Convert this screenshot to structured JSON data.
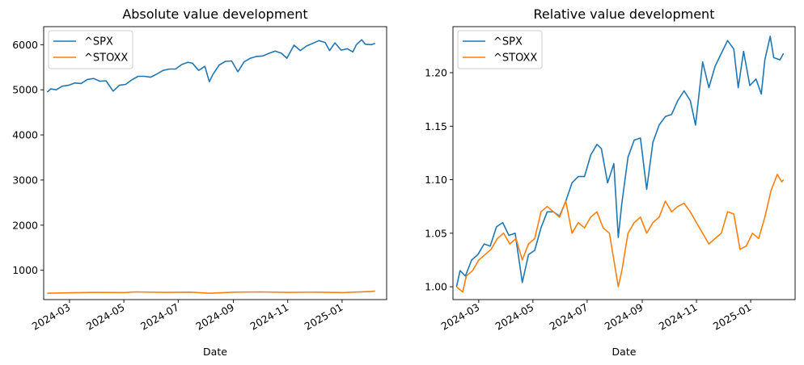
{
  "chart_data": [
    {
      "type": "line",
      "title": "Absolute value development",
      "xlabel": "Date",
      "ylabel": "",
      "x_range": [
        "2024-02-01",
        "2025-02-20"
      ],
      "ylim": [
        350,
        6400
      ],
      "x_ticks": [
        "2024-03",
        "2024-05",
        "2024-07",
        "2024-09",
        "2024-11",
        "2025-01"
      ],
      "y_ticks": [
        1000,
        2000,
        3000,
        4000,
        5000,
        6000
      ],
      "legend": "top-left",
      "series": [
        {
          "name": "^SPX",
          "color": "#1f77b4",
          "points": [
            [
              "2024-02-05",
              4950
            ],
            [
              "2024-02-09",
              5020
            ],
            [
              "2024-02-15",
              5000
            ],
            [
              "2024-02-22",
              5080
            ],
            [
              "2024-02-29",
              5100
            ],
            [
              "2024-03-07",
              5150
            ],
            [
              "2024-03-14",
              5140
            ],
            [
              "2024-03-21",
              5230
            ],
            [
              "2024-03-28",
              5250
            ],
            [
              "2024-04-04",
              5190
            ],
            [
              "2024-04-11",
              5200
            ],
            [
              "2024-04-19",
              4970
            ],
            [
              "2024-04-26",
              5100
            ],
            [
              "2024-05-03",
              5120
            ],
            [
              "2024-05-10",
              5220
            ],
            [
              "2024-05-17",
              5300
            ],
            [
              "2024-05-24",
              5300
            ],
            [
              "2024-05-31",
              5280
            ],
            [
              "2024-06-07",
              5350
            ],
            [
              "2024-06-14",
              5430
            ],
            [
              "2024-06-21",
              5460
            ],
            [
              "2024-06-28",
              5460
            ],
            [
              "2024-07-05",
              5560
            ],
            [
              "2024-07-12",
              5610
            ],
            [
              "2024-07-17",
              5590
            ],
            [
              "2024-07-24",
              5430
            ],
            [
              "2024-07-31",
              5520
            ],
            [
              "2024-08-05",
              5180
            ],
            [
              "2024-08-09",
              5340
            ],
            [
              "2024-08-16",
              5550
            ],
            [
              "2024-08-23",
              5630
            ],
            [
              "2024-08-30",
              5640
            ],
            [
              "2024-09-06",
              5400
            ],
            [
              "2024-09-13",
              5620
            ],
            [
              "2024-09-20",
              5700
            ],
            [
              "2024-09-27",
              5740
            ],
            [
              "2024-10-04",
              5750
            ],
            [
              "2024-10-11",
              5810
            ],
            [
              "2024-10-18",
              5860
            ],
            [
              "2024-10-25",
              5810
            ],
            [
              "2024-10-31",
              5700
            ],
            [
              "2024-11-08",
              5990
            ],
            [
              "2024-11-15",
              5870
            ],
            [
              "2024-11-22",
              5970
            ],
            [
              "2024-11-29",
              6030
            ],
            [
              "2024-12-06",
              6090
            ],
            [
              "2024-12-13",
              6050
            ],
            [
              "2024-12-18",
              5870
            ],
            [
              "2024-12-24",
              6040
            ],
            [
              "2024-12-31",
              5880
            ],
            [
              "2025-01-07",
              5910
            ],
            [
              "2025-01-13",
              5840
            ],
            [
              "2025-01-17",
              6000
            ],
            [
              "2025-01-23",
              6110
            ],
            [
              "2025-01-27",
              6010
            ],
            [
              "2025-02-03",
              6000
            ],
            [
              "2025-02-07",
              6030
            ]
          ]
        },
        {
          "name": "^STOXX",
          "color": "#ff7f0e",
          "points": [
            [
              "2024-02-05",
              490
            ],
            [
              "2024-03-01",
              500
            ],
            [
              "2024-04-01",
              510
            ],
            [
              "2024-05-01",
              505
            ],
            [
              "2024-05-15",
              520
            ],
            [
              "2024-06-14",
              510
            ],
            [
              "2024-07-15",
              515
            ],
            [
              "2024-08-05",
              490
            ],
            [
              "2024-09-02",
              515
            ],
            [
              "2024-10-01",
              520
            ],
            [
              "2024-11-01",
              510
            ],
            [
              "2024-12-02",
              515
            ],
            [
              "2025-01-02",
              505
            ],
            [
              "2025-02-03",
              530
            ],
            [
              "2025-02-07",
              540
            ]
          ]
        }
      ]
    },
    {
      "type": "line",
      "title": "Relative value development",
      "xlabel": "Date",
      "ylabel": "",
      "x_range": [
        "2024-02-01",
        "2025-02-20"
      ],
      "ylim": [
        0.988,
        1.243
      ],
      "x_ticks": [
        "2024-03",
        "2024-05",
        "2024-07",
        "2024-09",
        "2024-11",
        "2025-01"
      ],
      "y_ticks": [
        "1.00",
        "1.05",
        "1.10",
        "1.15",
        "1.20"
      ],
      "legend": "top-left",
      "series": [
        {
          "name": "^SPX",
          "color": "#1f77b4",
          "points": [
            [
              "2024-02-05",
              1.0
            ],
            [
              "2024-02-09",
              1.015
            ],
            [
              "2024-02-15",
              1.01
            ],
            [
              "2024-02-22",
              1.025
            ],
            [
              "2024-02-29",
              1.03
            ],
            [
              "2024-03-07",
              1.04
            ],
            [
              "2024-03-14",
              1.038
            ],
            [
              "2024-03-21",
              1.056
            ],
            [
              "2024-03-28",
              1.06
            ],
            [
              "2024-04-04",
              1.048
            ],
            [
              "2024-04-11",
              1.05
            ],
            [
              "2024-04-19",
              1.004
            ],
            [
              "2024-04-26",
              1.03
            ],
            [
              "2024-05-03",
              1.034
            ],
            [
              "2024-05-10",
              1.055
            ],
            [
              "2024-05-17",
              1.07
            ],
            [
              "2024-05-24",
              1.07
            ],
            [
              "2024-05-31",
              1.066
            ],
            [
              "2024-06-07",
              1.08
            ],
            [
              "2024-06-14",
              1.097
            ],
            [
              "2024-06-21",
              1.103
            ],
            [
              "2024-06-28",
              1.103
            ],
            [
              "2024-07-05",
              1.123
            ],
            [
              "2024-07-12",
              1.133
            ],
            [
              "2024-07-17",
              1.129
            ],
            [
              "2024-07-24",
              1.097
            ],
            [
              "2024-07-31",
              1.115
            ],
            [
              "2024-08-05",
              1.046
            ],
            [
              "2024-08-09",
              1.078
            ],
            [
              "2024-08-16",
              1.121
            ],
            [
              "2024-08-23",
              1.137
            ],
            [
              "2024-08-30",
              1.139
            ],
            [
              "2024-09-06",
              1.091
            ],
            [
              "2024-09-13",
              1.135
            ],
            [
              "2024-09-20",
              1.151
            ],
            [
              "2024-09-27",
              1.159
            ],
            [
              "2024-10-04",
              1.161
            ],
            [
              "2024-10-11",
              1.174
            ],
            [
              "2024-10-18",
              1.183
            ],
            [
              "2024-10-25",
              1.174
            ],
            [
              "2024-10-31",
              1.151
            ],
            [
              "2024-11-08",
              1.21
            ],
            [
              "2024-11-15",
              1.186
            ],
            [
              "2024-11-22",
              1.206
            ],
            [
              "2024-11-29",
              1.218
            ],
            [
              "2024-12-06",
              1.23
            ],
            [
              "2024-12-13",
              1.222
            ],
            [
              "2024-12-18",
              1.186
            ],
            [
              "2024-12-24",
              1.22
            ],
            [
              "2024-12-31",
              1.188
            ],
            [
              "2025-01-07",
              1.194
            ],
            [
              "2025-01-13",
              1.18
            ],
            [
              "2025-01-17",
              1.212
            ],
            [
              "2025-01-23",
              1.234
            ],
            [
              "2025-01-27",
              1.214
            ],
            [
              "2025-02-03",
              1.212
            ],
            [
              "2025-02-07",
              1.218
            ]
          ]
        },
        {
          "name": "^STOXX",
          "color": "#ff7f0e",
          "points": [
            [
              "2024-02-05",
              1.0
            ],
            [
              "2024-02-12",
              0.995
            ],
            [
              "2024-02-16",
              1.01
            ],
            [
              "2024-02-23",
              1.015
            ],
            [
              "2024-03-01",
              1.025
            ],
            [
              "2024-03-08",
              1.03
            ],
            [
              "2024-03-15",
              1.035
            ],
            [
              "2024-03-22",
              1.045
            ],
            [
              "2024-03-29",
              1.05
            ],
            [
              "2024-04-05",
              1.04
            ],
            [
              "2024-04-12",
              1.045
            ],
            [
              "2024-04-19",
              1.025
            ],
            [
              "2024-04-26",
              1.04
            ],
            [
              "2024-05-03",
              1.045
            ],
            [
              "2024-05-10",
              1.07
            ],
            [
              "2024-05-17",
              1.075
            ],
            [
              "2024-05-24",
              1.07
            ],
            [
              "2024-05-31",
              1.065
            ],
            [
              "2024-06-07",
              1.08
            ],
            [
              "2024-06-14",
              1.05
            ],
            [
              "2024-06-21",
              1.06
            ],
            [
              "2024-06-28",
              1.055
            ],
            [
              "2024-07-05",
              1.065
            ],
            [
              "2024-07-12",
              1.07
            ],
            [
              "2024-07-19",
              1.055
            ],
            [
              "2024-07-26",
              1.05
            ],
            [
              "2024-08-05",
              1.0
            ],
            [
              "2024-08-09",
              1.015
            ],
            [
              "2024-08-16",
              1.05
            ],
            [
              "2024-08-23",
              1.06
            ],
            [
              "2024-08-30",
              1.065
            ],
            [
              "2024-09-06",
              1.05
            ],
            [
              "2024-09-13",
              1.06
            ],
            [
              "2024-09-20",
              1.065
            ],
            [
              "2024-09-27",
              1.08
            ],
            [
              "2024-10-04",
              1.07
            ],
            [
              "2024-10-11",
              1.075
            ],
            [
              "2024-10-18",
              1.078
            ],
            [
              "2024-10-25",
              1.07
            ],
            [
              "2024-11-01",
              1.06
            ],
            [
              "2024-11-08",
              1.05
            ],
            [
              "2024-11-15",
              1.04
            ],
            [
              "2024-11-22",
              1.045
            ],
            [
              "2024-11-29",
              1.05
            ],
            [
              "2024-12-06",
              1.07
            ],
            [
              "2024-12-13",
              1.068
            ],
            [
              "2024-12-20",
              1.035
            ],
            [
              "2024-12-27",
              1.038
            ],
            [
              "2025-01-03",
              1.05
            ],
            [
              "2025-01-10",
              1.045
            ],
            [
              "2025-01-17",
              1.065
            ],
            [
              "2025-01-24",
              1.09
            ],
            [
              "2025-01-31",
              1.105
            ],
            [
              "2025-02-05",
              1.098
            ],
            [
              "2025-02-07",
              1.1
            ]
          ]
        }
      ]
    }
  ]
}
